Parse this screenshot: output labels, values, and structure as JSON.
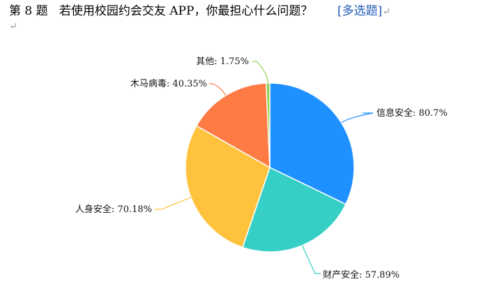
{
  "question": {
    "number": "第 8 题",
    "text": "若使用校园约会交友 APP，你最担心什么问题？",
    "tag": "[多选题]",
    "return_mark": "↵"
  },
  "chart_data": {
    "type": "pie",
    "title": "",
    "slices": [
      {
        "label": "信息安全",
        "value": 80.7,
        "display": "80.7%",
        "color": "#1e90ff"
      },
      {
        "label": "财产安全",
        "value": 57.89,
        "display": "57.89%",
        "color": "#35cfc6"
      },
      {
        "label": "人身安全",
        "value": 70.18,
        "display": "70.18%",
        "color": "#ffc23d"
      },
      {
        "label": "木马病毒",
        "value": 40.35,
        "display": "40.35%",
        "color": "#ff7b45"
      },
      {
        "label": "其他",
        "value": 1.75,
        "display": "1.75%",
        "color": "#8fd14f"
      }
    ]
  }
}
